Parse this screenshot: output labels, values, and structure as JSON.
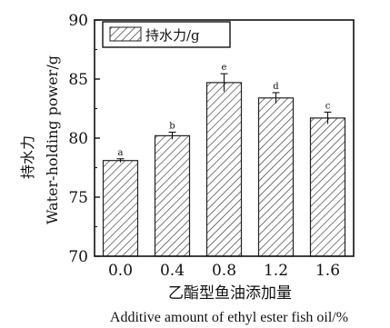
{
  "chart_data": {
    "type": "bar",
    "categories": [
      "0.0",
      "0.4",
      "0.8",
      "1.2",
      "1.6"
    ],
    "series": [
      {
        "name": "持水力/g",
        "values": [
          78.1,
          80.2,
          84.7,
          83.4,
          81.7
        ],
        "errors": [
          0.15,
          0.3,
          0.75,
          0.45,
          0.5
        ],
        "significance": [
          "a",
          "b",
          "e",
          "d",
          "c"
        ]
      }
    ],
    "ylim": [
      70,
      90
    ],
    "yticks": [
      "70",
      "75",
      "80",
      "85",
      "90"
    ],
    "ylabel_cn": "持水力",
    "ylabel_en": "Water-holding power/g",
    "xlabel_cn": "乙酯型鱼油添加量",
    "xlabel_en": "Additive amount of ethyl ester fish oil/%",
    "legend_position": "top-left",
    "bar_pattern": "diagonal-hatch",
    "colors": {
      "bar_fill": "#ffffff",
      "bar_stroke": "#222222",
      "hatch": "#333333",
      "axis": "#111111"
    }
  }
}
